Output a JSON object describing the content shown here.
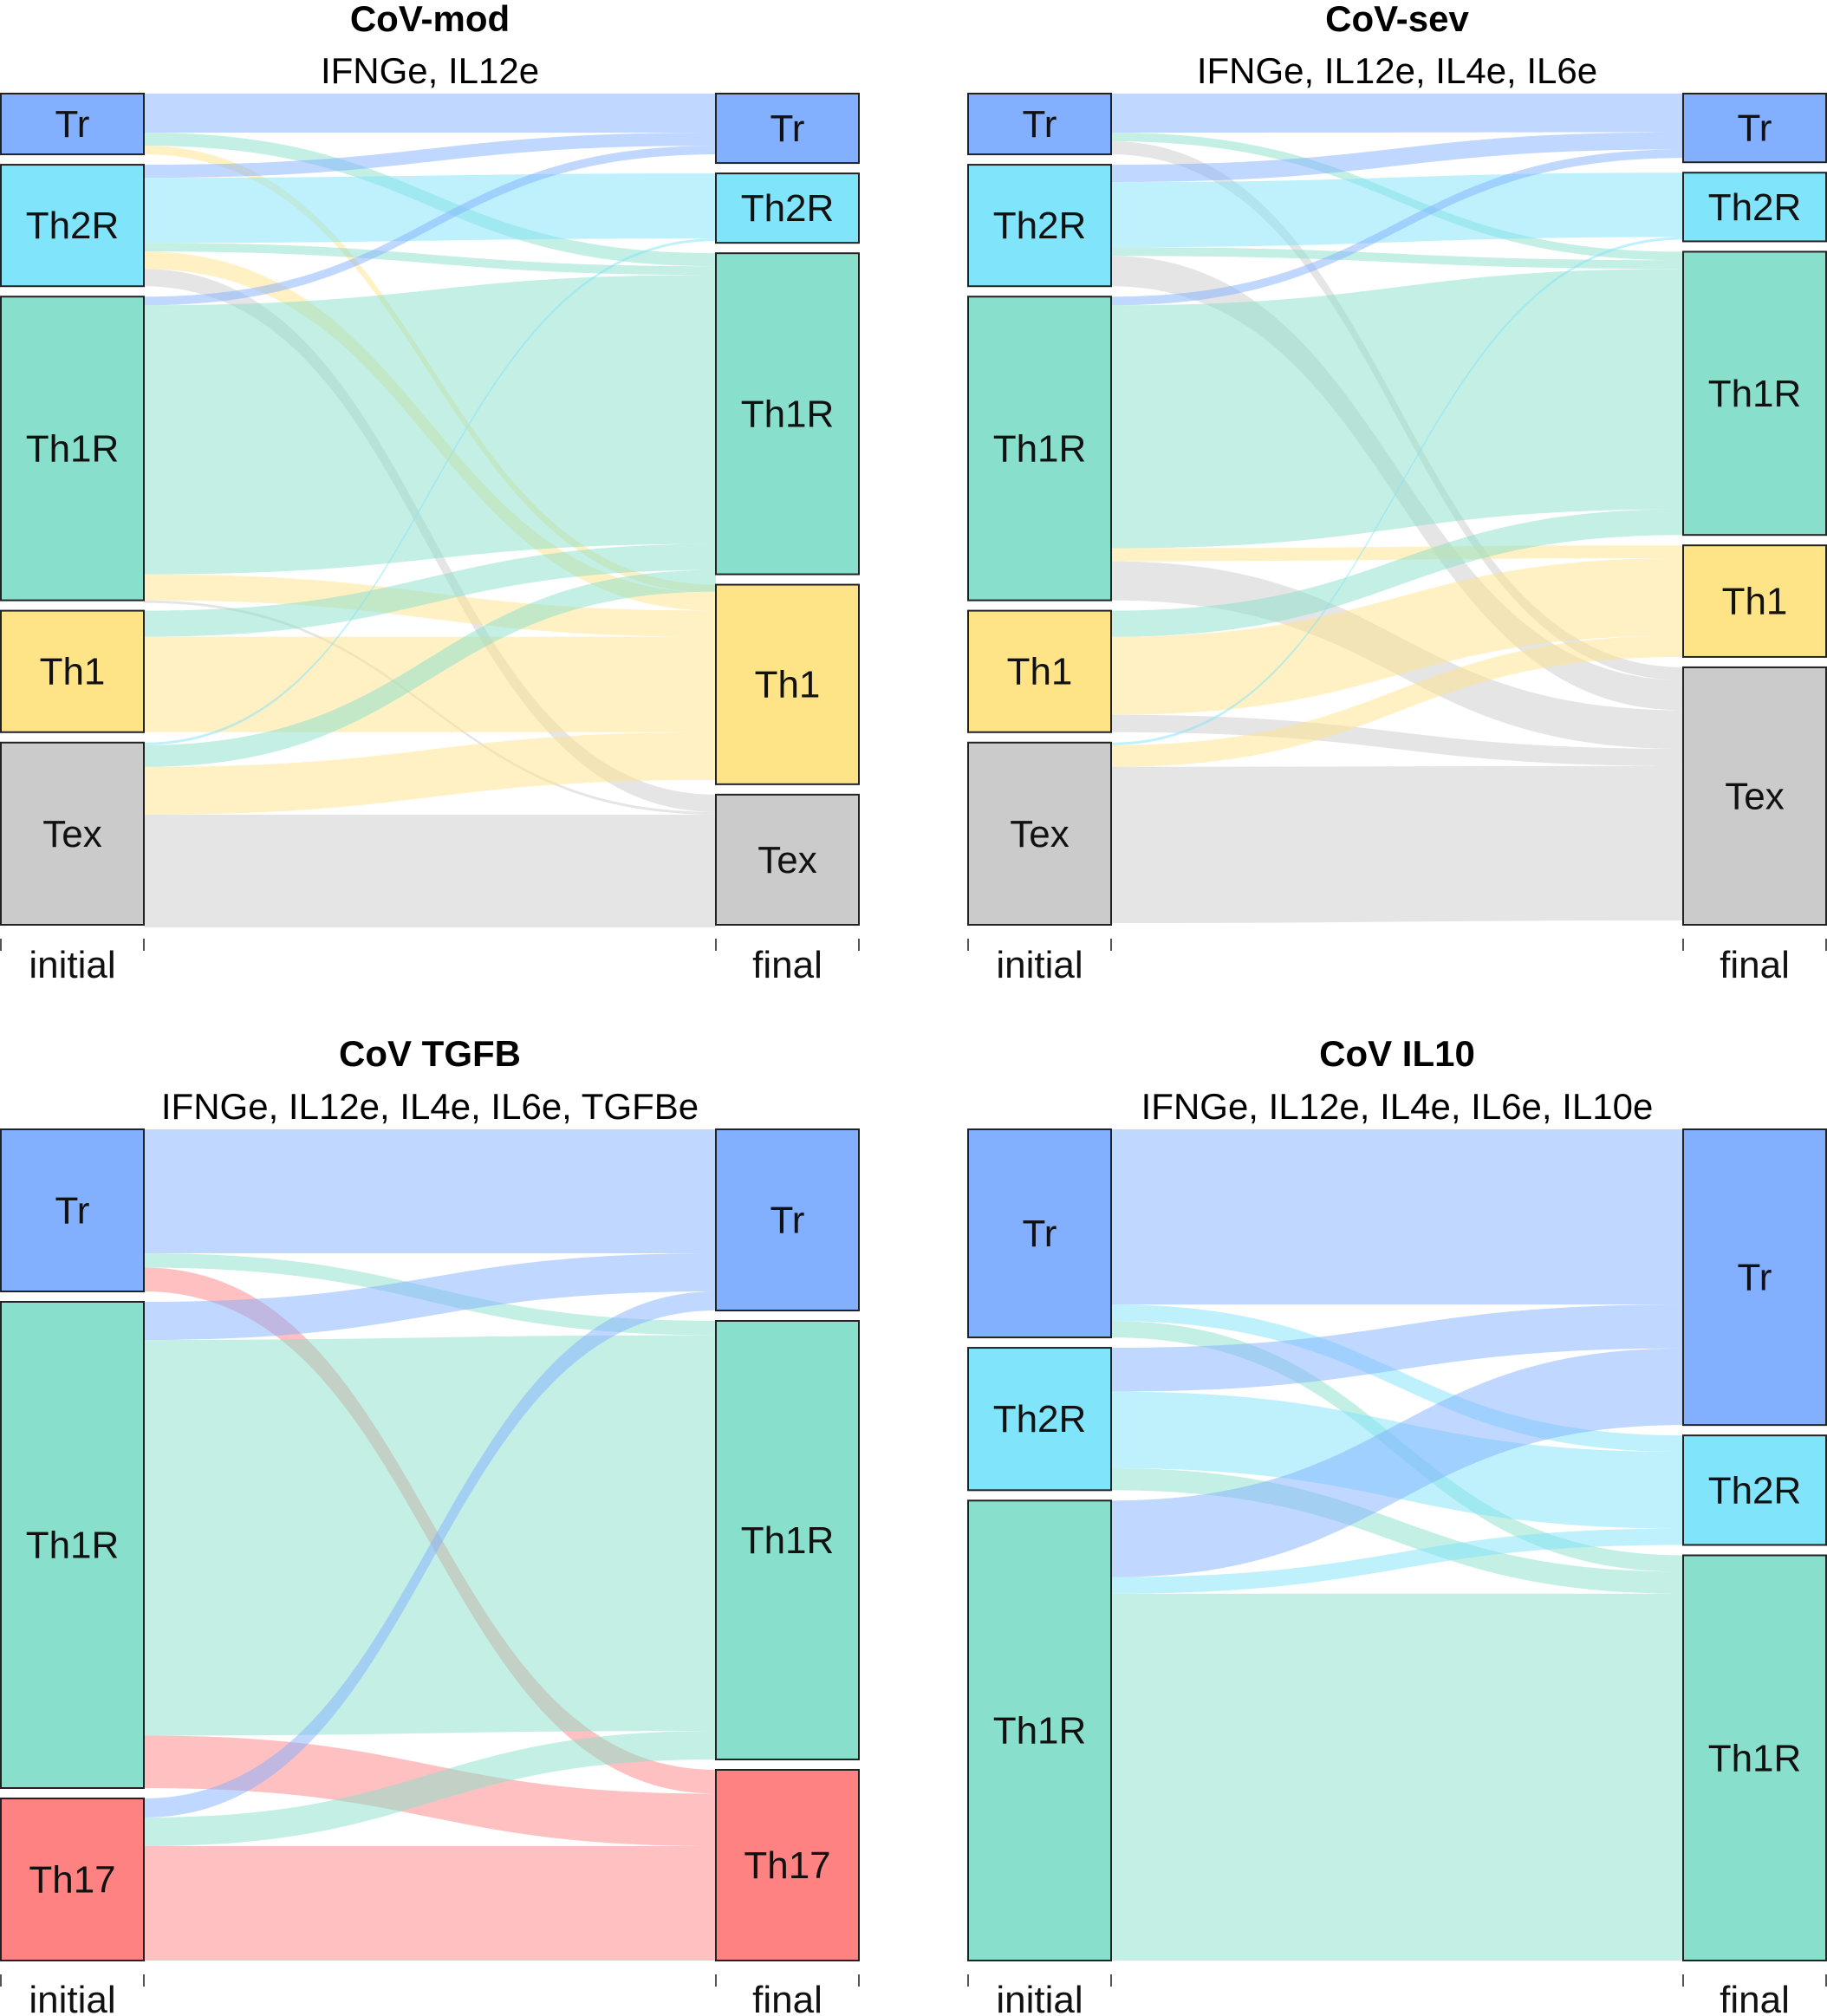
{
  "colors": {
    "Tr": "#82B0FF",
    "Th2R": "#80E4FB",
    "Th1R": "#88DFCC",
    "Th1": "#FFE487",
    "Tex": "#CBCBCB",
    "Th17": "#FF8283"
  },
  "axis_labels": {
    "initial": "initial",
    "final": "final"
  },
  "panels": [
    {
      "title": "CoV-mod",
      "subtitle": "IFNGe, IL12e",
      "initial_nodes": [
        {
          "name": "Tr",
          "value": 7
        },
        {
          "name": "Th2R",
          "value": 14
        },
        {
          "name": "Th1R",
          "value": 35
        },
        {
          "name": "Th1",
          "value": 14
        },
        {
          "name": "Tex",
          "value": 21
        }
      ],
      "final_nodes": [
        {
          "name": "Tr",
          "value": 8
        },
        {
          "name": "Th2R",
          "value": 8
        },
        {
          "name": "Th1R",
          "value": 37
        },
        {
          "name": "Th1",
          "value": 23
        },
        {
          "name": "Tex",
          "value": 15
        }
      ],
      "flows": [
        {
          "from": "Tr",
          "to": "Tr",
          "value": 4.5
        },
        {
          "from": "Tr",
          "to": "Th1R",
          "value": 1.5
        },
        {
          "from": "Tr",
          "to": "Th1",
          "value": 1
        },
        {
          "from": "Th2R",
          "to": "Tr",
          "value": 1.5
        },
        {
          "from": "Th2R",
          "to": "Th2R",
          "value": 7.5
        },
        {
          "from": "Th2R",
          "to": "Th1R",
          "value": 1
        },
        {
          "from": "Th2R",
          "to": "Th1",
          "value": 2
        },
        {
          "from": "Th2R",
          "to": "Tex",
          "value": 2
        },
        {
          "from": "Th1R",
          "to": "Tr",
          "value": 1
        },
        {
          "from": "Th1R",
          "to": "Th1R",
          "value": 31
        },
        {
          "from": "Th1R",
          "to": "Th1",
          "value": 3
        },
        {
          "from": "Th1R",
          "to": "Tex",
          "value": 0.3
        },
        {
          "from": "Th1",
          "to": "Th1R",
          "value": 3
        },
        {
          "from": "Th1",
          "to": "Th1",
          "value": 11
        },
        {
          "from": "Tex",
          "to": "Th2R",
          "value": 0.3
        },
        {
          "from": "Tex",
          "to": "Th1R",
          "value": 2.5
        },
        {
          "from": "Tex",
          "to": "Th1",
          "value": 5.5
        },
        {
          "from": "Tex",
          "to": "Tex",
          "value": 13
        }
      ]
    },
    {
      "title": "CoV-sev",
      "subtitle": "IFNGe, IL12e, IL4e, IL6e",
      "initial_nodes": [
        {
          "name": "Tr",
          "value": 7
        },
        {
          "name": "Th2R",
          "value": 14
        },
        {
          "name": "Th1R",
          "value": 35
        },
        {
          "name": "Th1",
          "value": 14
        },
        {
          "name": "Tex",
          "value": 21
        }
      ],
      "final_nodes": [
        {
          "name": "Tr",
          "value": 8
        },
        {
          "name": "Th2R",
          "value": 8
        },
        {
          "name": "Th1R",
          "value": 33
        },
        {
          "name": "Th1",
          "value": 13
        },
        {
          "name": "Tex",
          "value": 30
        }
      ],
      "flows": [
        {
          "from": "Tr",
          "to": "Tr",
          "value": 4.5
        },
        {
          "from": "Tr",
          "to": "Th1R",
          "value": 1
        },
        {
          "from": "Tr",
          "to": "Tex",
          "value": 1.5
        },
        {
          "from": "Th2R",
          "to": "Tr",
          "value": 2
        },
        {
          "from": "Th2R",
          "to": "Th2R",
          "value": 7.5
        },
        {
          "from": "Th2R",
          "to": "Th1R",
          "value": 1
        },
        {
          "from": "Th2R",
          "to": "Tex",
          "value": 3.5
        },
        {
          "from": "Th1R",
          "to": "Tr",
          "value": 1
        },
        {
          "from": "Th1R",
          "to": "Th1R",
          "value": 28
        },
        {
          "from": "Th1R",
          "to": "Th1",
          "value": 1.5
        },
        {
          "from": "Th1R",
          "to": "Tex",
          "value": 4.5
        },
        {
          "from": "Th1",
          "to": "Th1R",
          "value": 3
        },
        {
          "from": "Th1",
          "to": "Th1",
          "value": 9
        },
        {
          "from": "Th1",
          "to": "Tex",
          "value": 2
        },
        {
          "from": "Tex",
          "to": "Th2R",
          "value": 0.3
        },
        {
          "from": "Tex",
          "to": "Th1",
          "value": 2.5
        },
        {
          "from": "Tex",
          "to": "Tex",
          "value": 18
        }
      ]
    },
    {
      "title": "CoV TGFB",
      "subtitle": "IFNGe, IL12e, IL4e, IL6e, TGFBe",
      "initial_nodes": [
        {
          "name": "Tr",
          "value": 17
        },
        {
          "name": "Th1R",
          "value": 51
        },
        {
          "name": "Th17",
          "value": 17
        }
      ],
      "final_nodes": [
        {
          "name": "Tr",
          "value": 19
        },
        {
          "name": "Th1R",
          "value": 46
        },
        {
          "name": "Th17",
          "value": 20
        }
      ],
      "flows": [
        {
          "from": "Tr",
          "to": "Tr",
          "value": 13
        },
        {
          "from": "Tr",
          "to": "Th1R",
          "value": 1.5
        },
        {
          "from": "Tr",
          "to": "Th17",
          "value": 2.5
        },
        {
          "from": "Th1R",
          "to": "Tr",
          "value": 4
        },
        {
          "from": "Th1R",
          "to": "Th1R",
          "value": 41.5
        },
        {
          "from": "Th1R",
          "to": "Th17",
          "value": 5.5
        },
        {
          "from": "Th17",
          "to": "Tr",
          "value": 2
        },
        {
          "from": "Th17",
          "to": "Th1R",
          "value": 3
        },
        {
          "from": "Th17",
          "to": "Th17",
          "value": 12
        }
      ]
    },
    {
      "title": "CoV IL10",
      "subtitle": "IFNGe, IL12e, IL4e, IL6e, IL10e",
      "initial_nodes": [
        {
          "name": "Tr",
          "value": 19
        },
        {
          "name": "Th2R",
          "value": 13
        },
        {
          "name": "Th1R",
          "value": 42
        }
      ],
      "final_nodes": [
        {
          "name": "Tr",
          "value": 27
        },
        {
          "name": "Th2R",
          "value": 10
        },
        {
          "name": "Th1R",
          "value": 37
        }
      ],
      "flows": [
        {
          "from": "Tr",
          "to": "Tr",
          "value": 16
        },
        {
          "from": "Tr",
          "to": "Th2R",
          "value": 1.5
        },
        {
          "from": "Tr",
          "to": "Th1R",
          "value": 1.5
        },
        {
          "from": "Th2R",
          "to": "Tr",
          "value": 4
        },
        {
          "from": "Th2R",
          "to": "Th2R",
          "value": 7
        },
        {
          "from": "Th2R",
          "to": "Th1R",
          "value": 2
        },
        {
          "from": "Th1R",
          "to": "Tr",
          "value": 7
        },
        {
          "from": "Th1R",
          "to": "Th2R",
          "value": 1.5
        },
        {
          "from": "Th1R",
          "to": "Th1R",
          "value": 33.5
        }
      ]
    }
  ]
}
